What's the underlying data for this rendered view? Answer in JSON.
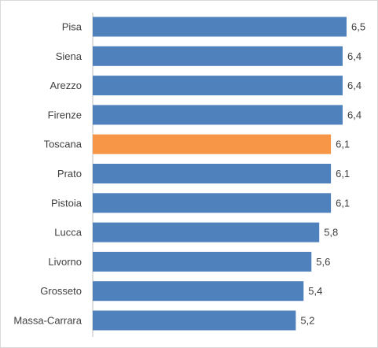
{
  "chart_data": {
    "type": "bar",
    "orientation": "horizontal",
    "categories": [
      "Pisa",
      "Siena",
      "Arezzo",
      "Firenze",
      "Toscana",
      "Prato",
      "Pistoia",
      "Lucca",
      "Livorno",
      "Grosseto",
      "Massa-Carrara"
    ],
    "values": [
      6.5,
      6.4,
      6.4,
      6.4,
      6.1,
      6.1,
      6.1,
      5.8,
      5.6,
      5.4,
      5.2
    ],
    "value_labels": [
      "6,5",
      "6,4",
      "6,4",
      "6,4",
      "6,1",
      "6,1",
      "6,1",
      "5,8",
      "5,6",
      "5,4",
      "5,2"
    ],
    "highlight_category": "Toscana",
    "colors": {
      "bar": "#4f81bd",
      "highlight": "#f79646",
      "axis": "#bfbfbf",
      "text": "#404040"
    },
    "xlim": [
      0,
      6.5
    ],
    "grid": false,
    "legend": "none",
    "title": "",
    "xlabel": "",
    "ylabel": ""
  }
}
